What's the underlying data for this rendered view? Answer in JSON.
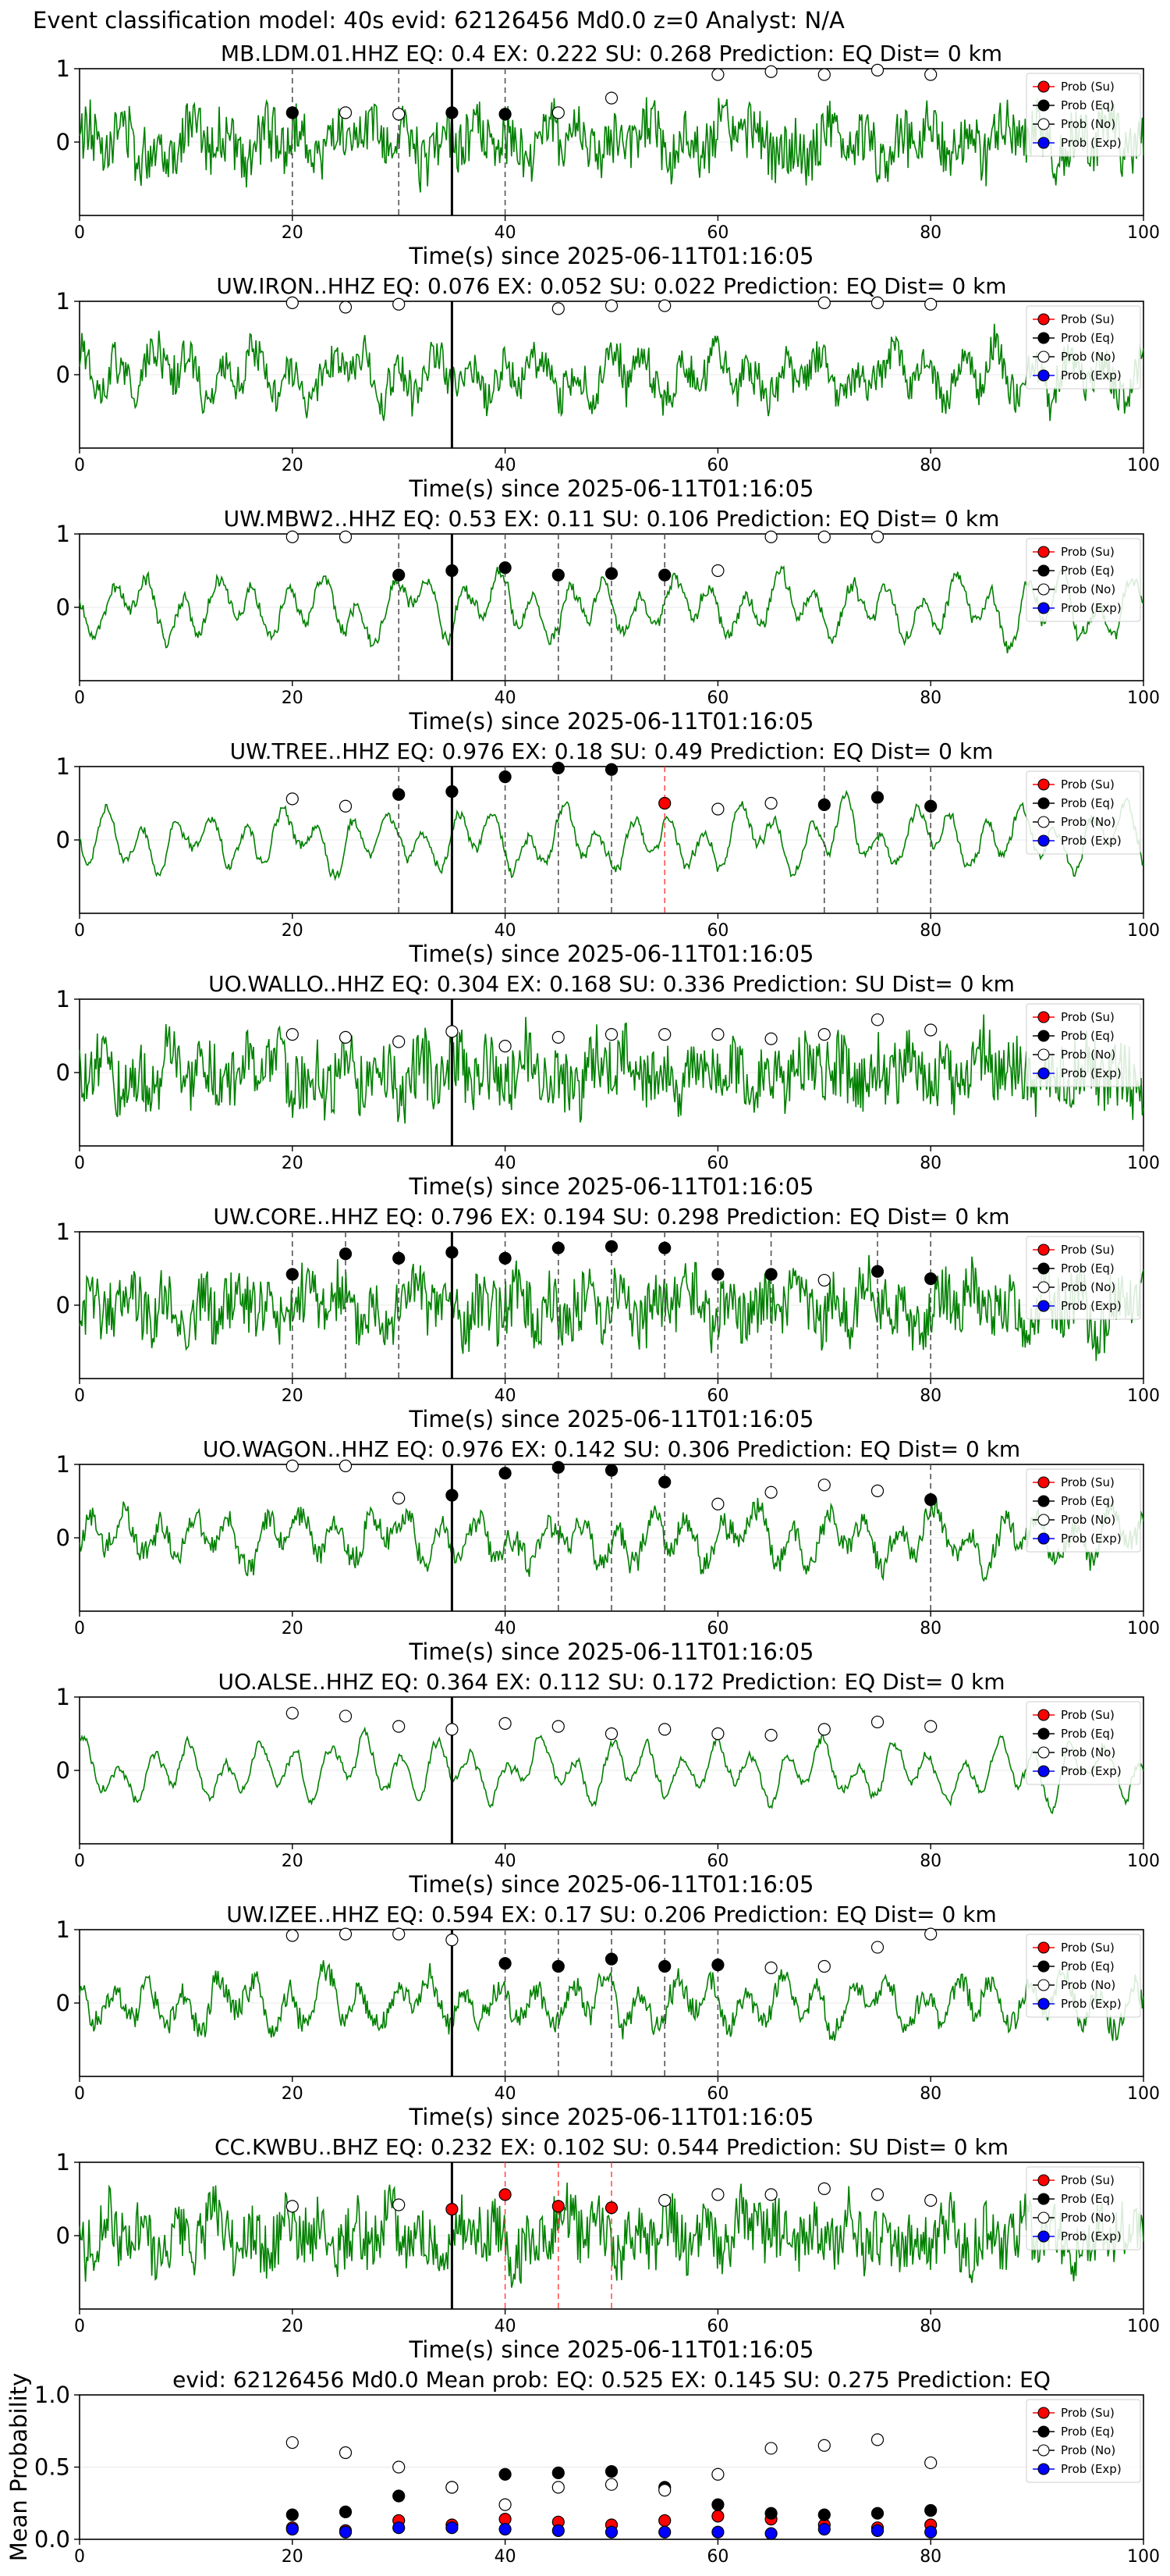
{
  "suptitle": "Event classification model: 40s evid: 62126456 Md0.0 z=0 Analyst: N/A",
  "xlabel": "Time(s) since 2025-06-11T01:16:05",
  "legend": [
    "Prob (Su)",
    "Prob (Eq)",
    "Prob (No)",
    "Prob (Exp)"
  ],
  "colors": {
    "waveform": "#008000",
    "su": "#ff0000",
    "eq": "#000000",
    "no": "#ffffff",
    "exp": "#0000ff",
    "eq_line": "#555555",
    "su_line": "#ff3b3b",
    "pick": "#000000"
  },
  "chart_data": [
    {
      "type": "line",
      "title": "MB.LDM.01.HHZ   EQ: 0.4  EX: 0.222  SU: 0.268   Prediction: EQ    Dist= 0 km",
      "xlim": [
        0,
        100
      ],
      "ylim": [
        -1,
        1
      ],
      "xticks": [
        0,
        20,
        40,
        60,
        80,
        100
      ],
      "yticks": [
        0,
        1
      ],
      "pick_time": 35,
      "noise": 0.8,
      "eq_lines": [
        20,
        30,
        40
      ],
      "su_lines": [],
      "points": [
        {
          "x": 20,
          "y": 0.4,
          "cls": "eq"
        },
        {
          "x": 25,
          "y": 0.4,
          "cls": "no"
        },
        {
          "x": 30,
          "y": 0.38,
          "cls": "no"
        },
        {
          "x": 35,
          "y": 0.4,
          "cls": "eq"
        },
        {
          "x": 40,
          "y": 0.38,
          "cls": "eq"
        },
        {
          "x": 45,
          "y": 0.4,
          "cls": "no"
        },
        {
          "x": 50,
          "y": 0.6,
          "cls": "no"
        },
        {
          "x": 60,
          "y": 0.92,
          "cls": "no"
        },
        {
          "x": 65,
          "y": 0.96,
          "cls": "no"
        },
        {
          "x": 70,
          "y": 0.92,
          "cls": "no"
        },
        {
          "x": 75,
          "y": 0.98,
          "cls": "no"
        },
        {
          "x": 80,
          "y": 0.92,
          "cls": "no"
        }
      ]
    },
    {
      "type": "line",
      "title": "UW.IRON..HHZ   EQ: 0.076  EX: 0.052  SU: 0.022   Prediction: EQ    Dist= 0 km",
      "xlim": [
        0,
        100
      ],
      "ylim": [
        -1,
        1
      ],
      "xticks": [
        0,
        20,
        40,
        60,
        80,
        100
      ],
      "yticks": [
        0,
        1
      ],
      "pick_time": 35,
      "noise": 0.55,
      "eq_lines": [],
      "su_lines": [],
      "points": [
        {
          "x": 20,
          "y": 0.98,
          "cls": "no"
        },
        {
          "x": 25,
          "y": 0.92,
          "cls": "no"
        },
        {
          "x": 30,
          "y": 0.96,
          "cls": "no"
        },
        {
          "x": 45,
          "y": 0.9,
          "cls": "no"
        },
        {
          "x": 50,
          "y": 0.94,
          "cls": "no"
        },
        {
          "x": 55,
          "y": 0.94,
          "cls": "no"
        },
        {
          "x": 70,
          "y": 0.98,
          "cls": "no"
        },
        {
          "x": 75,
          "y": 0.98,
          "cls": "no"
        },
        {
          "x": 80,
          "y": 0.96,
          "cls": "no"
        }
      ]
    },
    {
      "type": "line",
      "title": "UW.MBW2..HHZ   EQ: 0.53  EX: 0.11  SU: 0.106   Prediction: EQ    Dist= 0 km",
      "xlim": [
        0,
        100
      ],
      "ylim": [
        -1,
        1
      ],
      "xticks": [
        0,
        20,
        40,
        60,
        80,
        100
      ],
      "yticks": [
        0,
        1
      ],
      "pick_time": 35,
      "noise": 0.15,
      "eq_lines": [
        30,
        40,
        45,
        50,
        55
      ],
      "su_lines": [],
      "points": [
        {
          "x": 20,
          "y": 0.96,
          "cls": "no"
        },
        {
          "x": 25,
          "y": 0.96,
          "cls": "no"
        },
        {
          "x": 30,
          "y": 0.44,
          "cls": "eq"
        },
        {
          "x": 35,
          "y": 0.5,
          "cls": "eq"
        },
        {
          "x": 40,
          "y": 0.54,
          "cls": "eq"
        },
        {
          "x": 45,
          "y": 0.44,
          "cls": "eq"
        },
        {
          "x": 50,
          "y": 0.46,
          "cls": "eq"
        },
        {
          "x": 55,
          "y": 0.44,
          "cls": "eq"
        },
        {
          "x": 60,
          "y": 0.5,
          "cls": "no"
        },
        {
          "x": 65,
          "y": 0.96,
          "cls": "no"
        },
        {
          "x": 70,
          "y": 0.96,
          "cls": "no"
        },
        {
          "x": 75,
          "y": 0.96,
          "cls": "no"
        }
      ]
    },
    {
      "type": "line",
      "title": "UW.TREE..HHZ   EQ: 0.976  EX: 0.18  SU: 0.49   Prediction: EQ    Dist= 0 km",
      "xlim": [
        0,
        100
      ],
      "ylim": [
        -1,
        1
      ],
      "xticks": [
        0,
        20,
        40,
        60,
        80,
        100
      ],
      "yticks": [
        0,
        1
      ],
      "pick_time": 35,
      "noise": 0.08,
      "eq_lines": [
        30,
        40,
        45,
        50,
        70,
        75,
        80
      ],
      "su_lines": [
        55
      ],
      "points": [
        {
          "x": 20,
          "y": 0.56,
          "cls": "no"
        },
        {
          "x": 25,
          "y": 0.46,
          "cls": "no"
        },
        {
          "x": 30,
          "y": 0.62,
          "cls": "eq"
        },
        {
          "x": 35,
          "y": 0.66,
          "cls": "eq"
        },
        {
          "x": 40,
          "y": 0.86,
          "cls": "eq"
        },
        {
          "x": 45,
          "y": 0.98,
          "cls": "eq"
        },
        {
          "x": 50,
          "y": 0.96,
          "cls": "eq"
        },
        {
          "x": 55,
          "y": 0.5,
          "cls": "su"
        },
        {
          "x": 60,
          "y": 0.42,
          "cls": "no"
        },
        {
          "x": 65,
          "y": 0.5,
          "cls": "no"
        },
        {
          "x": 70,
          "y": 0.48,
          "cls": "eq"
        },
        {
          "x": 75,
          "y": 0.58,
          "cls": "eq"
        },
        {
          "x": 80,
          "y": 0.46,
          "cls": "eq"
        }
      ]
    },
    {
      "type": "line",
      "title": "UO.WALLO..HHZ   EQ: 0.304  EX: 0.168  SU: 0.336   Prediction: SU    Dist= 0 km",
      "xlim": [
        0,
        100
      ],
      "ylim": [
        -1,
        1
      ],
      "xticks": [
        0,
        20,
        40,
        60,
        80,
        100
      ],
      "yticks": [
        0,
        1
      ],
      "pick_time": 35,
      "noise": 0.95,
      "eq_lines": [],
      "su_lines": [],
      "points": [
        {
          "x": 20,
          "y": 0.52,
          "cls": "no"
        },
        {
          "x": 25,
          "y": 0.48,
          "cls": "no"
        },
        {
          "x": 30,
          "y": 0.42,
          "cls": "no"
        },
        {
          "x": 35,
          "y": 0.56,
          "cls": "no"
        },
        {
          "x": 40,
          "y": 0.36,
          "cls": "no"
        },
        {
          "x": 45,
          "y": 0.48,
          "cls": "no"
        },
        {
          "x": 50,
          "y": 0.52,
          "cls": "no"
        },
        {
          "x": 55,
          "y": 0.52,
          "cls": "no"
        },
        {
          "x": 60,
          "y": 0.52,
          "cls": "no"
        },
        {
          "x": 65,
          "y": 0.46,
          "cls": "no"
        },
        {
          "x": 70,
          "y": 0.52,
          "cls": "no"
        },
        {
          "x": 75,
          "y": 0.72,
          "cls": "no"
        },
        {
          "x": 80,
          "y": 0.58,
          "cls": "no"
        }
      ]
    },
    {
      "type": "line",
      "title": "UW.CORE..HHZ   EQ: 0.796  EX: 0.194  SU: 0.298   Prediction: EQ    Dist= 0 km",
      "xlim": [
        0,
        100
      ],
      "ylim": [
        -1,
        1
      ],
      "xticks": [
        0,
        20,
        40,
        60,
        80,
        100
      ],
      "yticks": [
        0,
        1
      ],
      "pick_time": 35,
      "noise": 0.9,
      "eq_lines": [
        20,
        25,
        30,
        40,
        45,
        50,
        55,
        60,
        65,
        75,
        80
      ],
      "su_lines": [],
      "points": [
        {
          "x": 20,
          "y": 0.42,
          "cls": "eq"
        },
        {
          "x": 25,
          "y": 0.7,
          "cls": "eq"
        },
        {
          "x": 30,
          "y": 0.64,
          "cls": "eq"
        },
        {
          "x": 35,
          "y": 0.72,
          "cls": "eq"
        },
        {
          "x": 40,
          "y": 0.64,
          "cls": "eq"
        },
        {
          "x": 45,
          "y": 0.78,
          "cls": "eq"
        },
        {
          "x": 50,
          "y": 0.8,
          "cls": "eq"
        },
        {
          "x": 55,
          "y": 0.78,
          "cls": "eq"
        },
        {
          "x": 60,
          "y": 0.42,
          "cls": "eq"
        },
        {
          "x": 65,
          "y": 0.42,
          "cls": "eq"
        },
        {
          "x": 70,
          "y": 0.34,
          "cls": "no"
        },
        {
          "x": 75,
          "y": 0.46,
          "cls": "eq"
        },
        {
          "x": 80,
          "y": 0.36,
          "cls": "eq"
        }
      ]
    },
    {
      "type": "line",
      "title": "UO.WAGON..HHZ   EQ: 0.976  EX: 0.142  SU: 0.306   Prediction: EQ    Dist= 0 km",
      "xlim": [
        0,
        100
      ],
      "ylim": [
        -1,
        1
      ],
      "xticks": [
        0,
        20,
        40,
        60,
        80,
        100
      ],
      "yticks": [
        0,
        1
      ],
      "pick_time": 35,
      "noise": 0.3,
      "eq_lines": [
        40,
        45,
        50,
        55,
        80
      ],
      "su_lines": [],
      "points": [
        {
          "x": 20,
          "y": 0.98,
          "cls": "no"
        },
        {
          "x": 25,
          "y": 0.98,
          "cls": "no"
        },
        {
          "x": 30,
          "y": 0.54,
          "cls": "no"
        },
        {
          "x": 35,
          "y": 0.58,
          "cls": "eq"
        },
        {
          "x": 40,
          "y": 0.88,
          "cls": "eq"
        },
        {
          "x": 45,
          "y": 0.96,
          "cls": "eq"
        },
        {
          "x": 50,
          "y": 0.92,
          "cls": "eq"
        },
        {
          "x": 55,
          "y": 0.76,
          "cls": "eq"
        },
        {
          "x": 60,
          "y": 0.46,
          "cls": "no"
        },
        {
          "x": 65,
          "y": 0.62,
          "cls": "no"
        },
        {
          "x": 70,
          "y": 0.72,
          "cls": "no"
        },
        {
          "x": 75,
          "y": 0.64,
          "cls": "no"
        },
        {
          "x": 80,
          "y": 0.52,
          "cls": "eq"
        }
      ]
    },
    {
      "type": "line",
      "title": "UO.ALSE..HHZ   EQ: 0.364  EX: 0.112  SU: 0.172   Prediction: EQ    Dist= 0 km",
      "xlim": [
        0,
        100
      ],
      "ylim": [
        -1,
        1
      ],
      "xticks": [
        0,
        20,
        40,
        60,
        80,
        100
      ],
      "yticks": [
        0,
        1
      ],
      "pick_time": 35,
      "noise": 0.05,
      "eq_lines": [],
      "su_lines": [],
      "points": [
        {
          "x": 20,
          "y": 0.78,
          "cls": "no"
        },
        {
          "x": 25,
          "y": 0.74,
          "cls": "no"
        },
        {
          "x": 30,
          "y": 0.6,
          "cls": "no"
        },
        {
          "x": 35,
          "y": 0.56,
          "cls": "no"
        },
        {
          "x": 40,
          "y": 0.64,
          "cls": "no"
        },
        {
          "x": 45,
          "y": 0.6,
          "cls": "no"
        },
        {
          "x": 50,
          "y": 0.5,
          "cls": "no"
        },
        {
          "x": 55,
          "y": 0.56,
          "cls": "no"
        },
        {
          "x": 60,
          "y": 0.5,
          "cls": "no"
        },
        {
          "x": 65,
          "y": 0.48,
          "cls": "no"
        },
        {
          "x": 70,
          "y": 0.56,
          "cls": "no"
        },
        {
          "x": 75,
          "y": 0.66,
          "cls": "no"
        },
        {
          "x": 80,
          "y": 0.6,
          "cls": "no"
        }
      ]
    },
    {
      "type": "line",
      "title": "UW.IZEE..HHZ   EQ: 0.594  EX: 0.17  SU: 0.206   Prediction: EQ    Dist= 0 km",
      "xlim": [
        0,
        100
      ],
      "ylim": [
        -1,
        1
      ],
      "xticks": [
        0,
        20,
        40,
        60,
        80,
        100
      ],
      "yticks": [
        0,
        1
      ],
      "pick_time": 35,
      "noise": 0.3,
      "eq_lines": [
        40,
        45,
        50,
        55,
        60
      ],
      "su_lines": [],
      "points": [
        {
          "x": 20,
          "y": 0.92,
          "cls": "no"
        },
        {
          "x": 25,
          "y": 0.94,
          "cls": "no"
        },
        {
          "x": 30,
          "y": 0.94,
          "cls": "no"
        },
        {
          "x": 35,
          "y": 0.86,
          "cls": "no"
        },
        {
          "x": 40,
          "y": 0.54,
          "cls": "eq"
        },
        {
          "x": 45,
          "y": 0.5,
          "cls": "eq"
        },
        {
          "x": 50,
          "y": 0.6,
          "cls": "eq"
        },
        {
          "x": 55,
          "y": 0.5,
          "cls": "eq"
        },
        {
          "x": 60,
          "y": 0.52,
          "cls": "eq"
        },
        {
          "x": 65,
          "y": 0.48,
          "cls": "no"
        },
        {
          "x": 70,
          "y": 0.5,
          "cls": "no"
        },
        {
          "x": 75,
          "y": 0.76,
          "cls": "no"
        },
        {
          "x": 80,
          "y": 0.94,
          "cls": "no"
        }
      ]
    },
    {
      "type": "line",
      "title": "CC.KWBU..BHZ   EQ: 0.232  EX: 0.102  SU: 0.544   Prediction: SU    Dist= 0 km",
      "xlim": [
        0,
        100
      ],
      "ylim": [
        -1,
        1
      ],
      "xticks": [
        0,
        20,
        40,
        60,
        80,
        100
      ],
      "yticks": [
        0,
        1
      ],
      "pick_time": 35,
      "noise": 0.9,
      "eq_lines": [],
      "su_lines": [
        35,
        40,
        45,
        50
      ],
      "points": [
        {
          "x": 20,
          "y": 0.4,
          "cls": "no"
        },
        {
          "x": 30,
          "y": 0.42,
          "cls": "no"
        },
        {
          "x": 35,
          "y": 0.36,
          "cls": "su"
        },
        {
          "x": 40,
          "y": 0.56,
          "cls": "su"
        },
        {
          "x": 45,
          "y": 0.4,
          "cls": "su"
        },
        {
          "x": 50,
          "y": 0.38,
          "cls": "su"
        },
        {
          "x": 55,
          "y": 0.48,
          "cls": "no"
        },
        {
          "x": 60,
          "y": 0.56,
          "cls": "no"
        },
        {
          "x": 65,
          "y": 0.56,
          "cls": "no"
        },
        {
          "x": 70,
          "y": 0.64,
          "cls": "no"
        },
        {
          "x": 75,
          "y": 0.56,
          "cls": "no"
        },
        {
          "x": 80,
          "y": 0.48,
          "cls": "no"
        }
      ]
    },
    {
      "type": "scatter",
      "title": "evid: 62126456  Md0.0   Mean prob:    EQ: 0.525  EX: 0.145  SU: 0.275   Prediction: EQ",
      "ylabel": "Mean Probability",
      "xlim": [
        0,
        100
      ],
      "ylim": [
        0,
        1
      ],
      "xticks": [
        0,
        20,
        40,
        60,
        80,
        100
      ],
      "yticks": [
        0.0,
        0.5,
        1.0
      ],
      "ytick_labels": [
        "0.0",
        "0.5",
        "1.0"
      ],
      "x": [
        20,
        25,
        30,
        35,
        40,
        45,
        50,
        55,
        60,
        65,
        70,
        75,
        80
      ],
      "series": [
        {
          "name": "Prob (Su)",
          "cls": "su",
          "values": [
            0.08,
            0.06,
            0.13,
            0.1,
            0.14,
            0.12,
            0.1,
            0.13,
            0.16,
            0.14,
            0.1,
            0.08,
            0.1
          ]
        },
        {
          "name": "Prob (Eq)",
          "cls": "eq",
          "values": [
            0.17,
            0.19,
            0.3,
            0.36,
            0.45,
            0.46,
            0.47,
            0.36,
            0.24,
            0.18,
            0.17,
            0.18,
            0.2
          ]
        },
        {
          "name": "Prob (No)",
          "cls": "no",
          "values": [
            0.67,
            0.6,
            0.5,
            0.36,
            0.24,
            0.36,
            0.38,
            0.34,
            0.45,
            0.63,
            0.65,
            0.69,
            0.53
          ]
        },
        {
          "name": "Prob (Exp)",
          "cls": "exp",
          "values": [
            0.07,
            0.05,
            0.08,
            0.08,
            0.07,
            0.06,
            0.05,
            0.05,
            0.05,
            0.04,
            0.07,
            0.06,
            0.05
          ]
        }
      ]
    }
  ]
}
